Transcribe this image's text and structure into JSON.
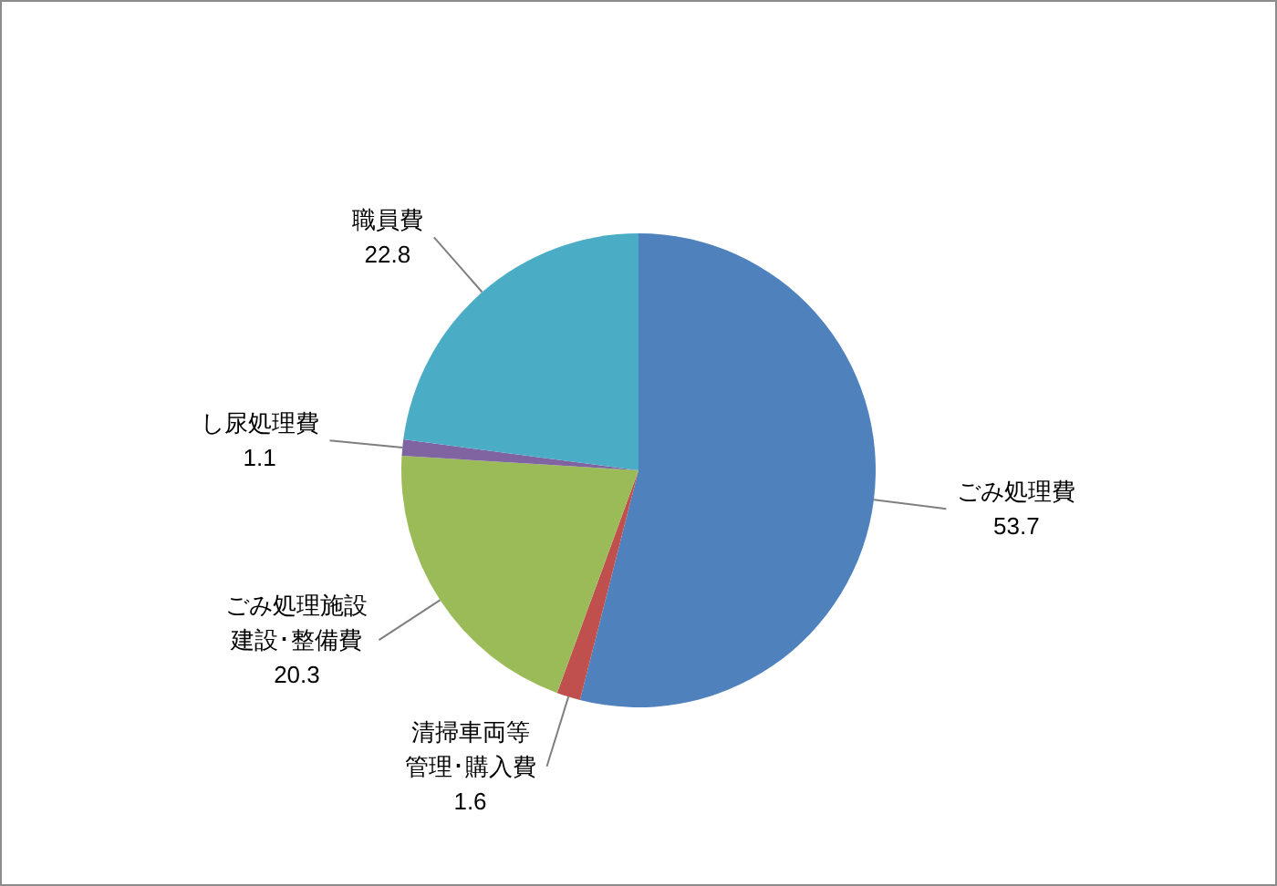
{
  "chart_data": {
    "type": "pie",
    "categories": [
      "ごみ処理費",
      "清掃車両等管理･購入費",
      "ごみ処理施設建設･整備費",
      "し尿処理費",
      "職員費"
    ],
    "values": [
      53.7,
      1.6,
      20.3,
      1.1,
      22.8
    ],
    "colors": [
      "#4f81bd",
      "#c0504d",
      "#9bbb59",
      "#8064a2",
      "#4bacc6"
    ],
    "data_labels": true
  }
}
